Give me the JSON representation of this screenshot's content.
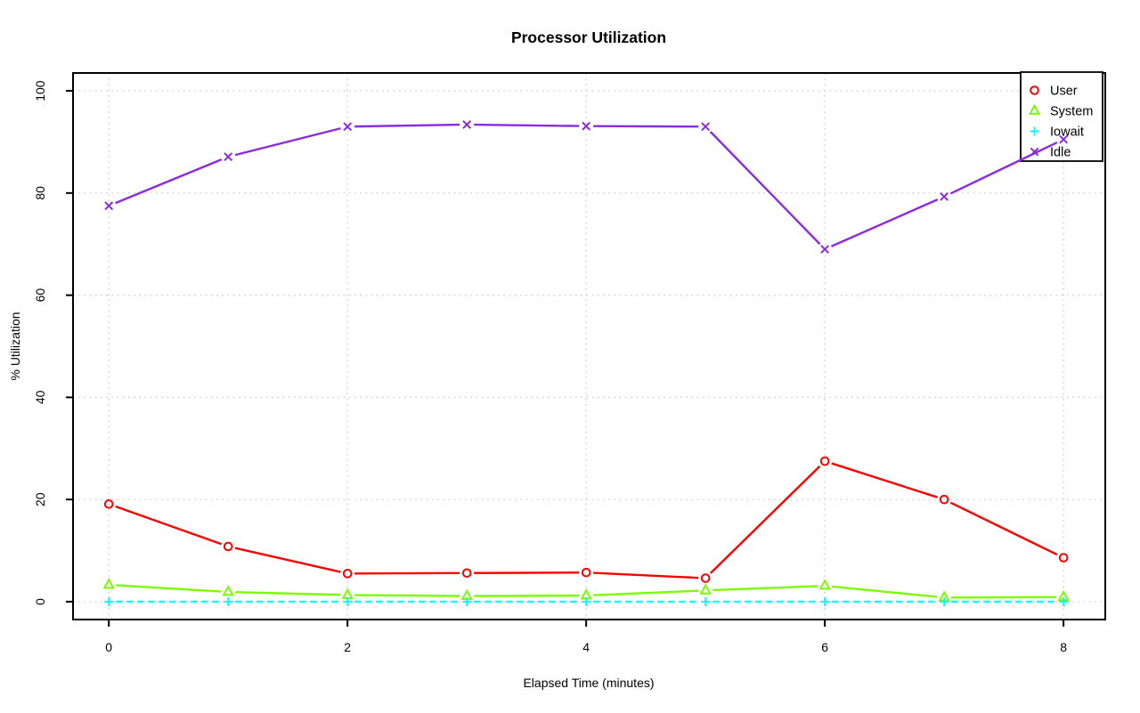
{
  "figure": {
    "title": "Processor Utilization",
    "xlabel": "Elapsed Time (minutes)",
    "ylabel": "% Utilization"
  },
  "chart_data": {
    "type": "line",
    "title": "Processor Utilization",
    "xlabel": "Elapsed Time (minutes)",
    "ylabel": "% Utilization",
    "x": [
      0,
      1,
      2,
      3,
      4,
      5,
      6,
      7,
      8
    ],
    "xticks": [
      0,
      2,
      4,
      6,
      8
    ],
    "yticks": [
      0,
      20,
      40,
      60,
      80,
      100
    ],
    "xlim": [
      -0.3,
      8.35
    ],
    "ylim": [
      -3.5,
      103.5
    ],
    "grid": "dotted-lightgray",
    "grid_color": "#cfcfcf",
    "legend": {
      "position": "topright",
      "entries": [
        "User",
        "System",
        "Iowait",
        "Idle"
      ]
    },
    "series": [
      {
        "name": "User",
        "color": "#ff0000",
        "marker": "circle",
        "linestyle": "solid",
        "values": [
          19.1,
          10.8,
          5.5,
          5.6,
          5.7,
          4.6,
          27.5,
          20.0,
          8.6
        ]
      },
      {
        "name": "System",
        "color": "#7cfc00",
        "marker": "triangle",
        "linestyle": "solid",
        "values": [
          3.3,
          1.9,
          1.3,
          1.1,
          1.2,
          2.2,
          3.1,
          0.8,
          0.9
        ]
      },
      {
        "name": "Iowait",
        "color": "#00ffff",
        "marker": "plus",
        "linestyle": "dashed",
        "values": [
          0,
          0,
          0,
          0,
          0,
          0,
          0,
          0,
          0
        ]
      },
      {
        "name": "Idle",
        "color": "#8a2be2",
        "marker": "x",
        "linestyle": "solid",
        "values": [
          77.5,
          87.1,
          93.0,
          93.4,
          93.1,
          93.0,
          69.0,
          79.3,
          90.5
        ]
      }
    ]
  }
}
